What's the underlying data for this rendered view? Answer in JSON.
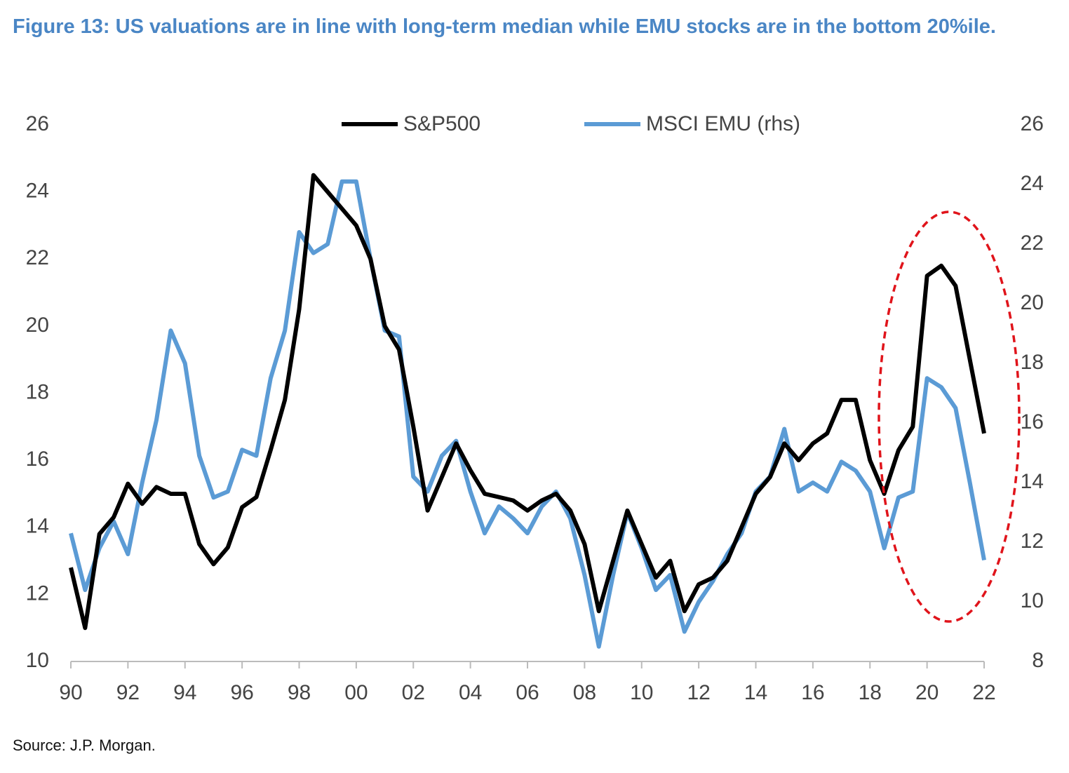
{
  "chart_data": {
    "type": "line",
    "title": "Figure 13: US valuations are in line with long-term median while EMU stocks are in the bottom 20%ile.",
    "source": "Source: J.P. Morgan.",
    "x": [
      1990,
      1990.5,
      1991,
      1991.5,
      1992,
      1992.5,
      1993,
      1993.5,
      1994,
      1994.5,
      1995,
      1995.5,
      1996,
      1996.5,
      1997,
      1997.5,
      1998,
      1998.5,
      1999,
      1999.5,
      2000,
      2000.5,
      2001,
      2001.5,
      2002,
      2002.5,
      2003,
      2003.5,
      2004,
      2004.5,
      2005,
      2005.5,
      2006,
      2006.5,
      2007,
      2007.5,
      2008,
      2008.5,
      2009,
      2009.5,
      2010,
      2010.5,
      2011,
      2011.5,
      2012,
      2012.5,
      2013,
      2013.5,
      2014,
      2014.5,
      2015,
      2015.5,
      2016,
      2016.5,
      2017,
      2017.5,
      2018,
      2018.5,
      2019,
      2019.5,
      2020,
      2020.5,
      2021,
      2021.5,
      2022
    ],
    "series": [
      {
        "name": "S&P500",
        "color": "#000000",
        "axis": "y",
        "values": [
          12.8,
          11.0,
          13.8,
          14.3,
          15.3,
          14.7,
          15.2,
          15.0,
          15.0,
          13.5,
          12.9,
          13.4,
          14.6,
          14.9,
          16.3,
          17.8,
          20.5,
          24.5,
          24.0,
          23.5,
          23.0,
          22.0,
          20.0,
          19.3,
          17.0,
          14.5,
          15.5,
          16.5,
          15.7,
          15.0,
          14.9,
          14.8,
          14.5,
          14.8,
          15.0,
          14.5,
          13.5,
          11.5,
          13.0,
          14.5,
          13.5,
          12.5,
          13.0,
          11.5,
          12.3,
          12.5,
          13.0,
          14.0,
          15.0,
          15.5,
          16.5,
          16.0,
          16.5,
          16.8,
          17.8,
          17.8,
          16.0,
          15.0,
          16.3,
          17.0,
          21.5,
          21.8,
          21.2,
          19.0,
          16.8
        ]
      },
      {
        "name": "MSCI EMU (rhs)",
        "color": "#5b9bd5",
        "axis": "y2",
        "values": [
          12.3,
          10.4,
          11.8,
          12.7,
          11.6,
          14.0,
          16.1,
          19.1,
          18.0,
          14.9,
          13.5,
          13.7,
          15.1,
          14.9,
          17.5,
          19.1,
          22.4,
          21.7,
          22.0,
          24.1,
          24.1,
          21.5,
          19.1,
          18.9,
          14.2,
          13.7,
          14.9,
          15.4,
          13.7,
          12.3,
          13.2,
          12.8,
          12.3,
          13.2,
          13.7,
          12.8,
          10.9,
          8.5,
          10.9,
          13.0,
          11.8,
          10.4,
          10.9,
          9.0,
          10.0,
          10.7,
          11.6,
          12.3,
          13.7,
          14.2,
          15.8,
          13.7,
          14.0,
          13.7,
          14.7,
          14.4,
          13.7,
          11.8,
          13.5,
          13.7,
          17.5,
          17.2,
          16.5,
          14.0,
          11.4
        ]
      }
    ],
    "xlim": [
      1990,
      2022
    ],
    "xticks": [
      {
        "value": 1990,
        "label": "90"
      },
      {
        "value": 1992,
        "label": "92"
      },
      {
        "value": 1994,
        "label": "94"
      },
      {
        "value": 1996,
        "label": "96"
      },
      {
        "value": 1998,
        "label": "98"
      },
      {
        "value": 2000,
        "label": "00"
      },
      {
        "value": 2002,
        "label": "02"
      },
      {
        "value": 2004,
        "label": "04"
      },
      {
        "value": 2006,
        "label": "06"
      },
      {
        "value": 2008,
        "label": "08"
      },
      {
        "value": 2010,
        "label": "10"
      },
      {
        "value": 2012,
        "label": "12"
      },
      {
        "value": 2014,
        "label": "14"
      },
      {
        "value": 2016,
        "label": "16"
      },
      {
        "value": 2018,
        "label": "18"
      },
      {
        "value": 2020,
        "label": "20"
      },
      {
        "value": 2022,
        "label": "22"
      }
    ],
    "ylim": [
      10,
      26
    ],
    "yticks": [
      10,
      12,
      14,
      16,
      18,
      20,
      22,
      24,
      26
    ],
    "y2lim": [
      8,
      26
    ],
    "y2ticks": [
      8,
      10,
      12,
      14,
      16,
      18,
      20,
      22,
      24,
      26
    ],
    "legend": "top"
  }
}
